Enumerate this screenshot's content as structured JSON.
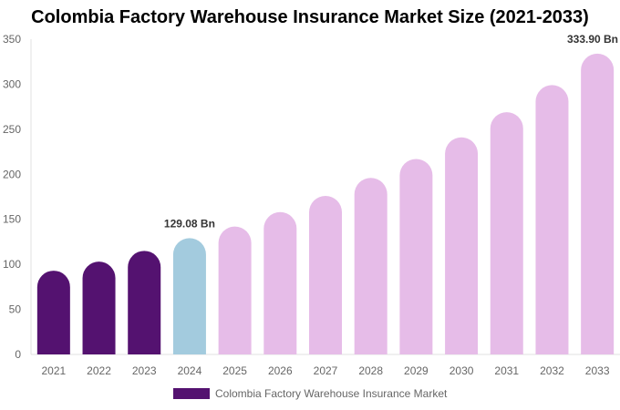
{
  "chart_data": {
    "type": "bar",
    "title": "Colombia Factory Warehouse Insurance Market Size (2021-2033)",
    "categories": [
      "2021",
      "2022",
      "2023",
      "2024",
      "2025",
      "2026",
      "2027",
      "2028",
      "2029",
      "2030",
      "2031",
      "2032",
      "2033"
    ],
    "series": [
      {
        "name": "Colombia Factory Warehouse Insurance Market",
        "values": [
          93,
          103,
          115,
          129.08,
          142,
          158,
          176,
          196,
          217,
          241,
          269,
          299,
          333.9
        ]
      }
    ],
    "data_labels": [
      {
        "category": "2024",
        "text": "129.08 Bn"
      },
      {
        "category": "2033",
        "text": "333.90 Bn"
      }
    ],
    "ylim": [
      0,
      350
    ],
    "yticks": [
      0,
      50,
      100,
      150,
      200,
      250,
      300,
      350
    ],
    "grid": false,
    "legend": "bottom",
    "colors": {
      "historical": "#541270",
      "base_year": "#a3cbde",
      "forecast": "#e6bce8"
    }
  }
}
